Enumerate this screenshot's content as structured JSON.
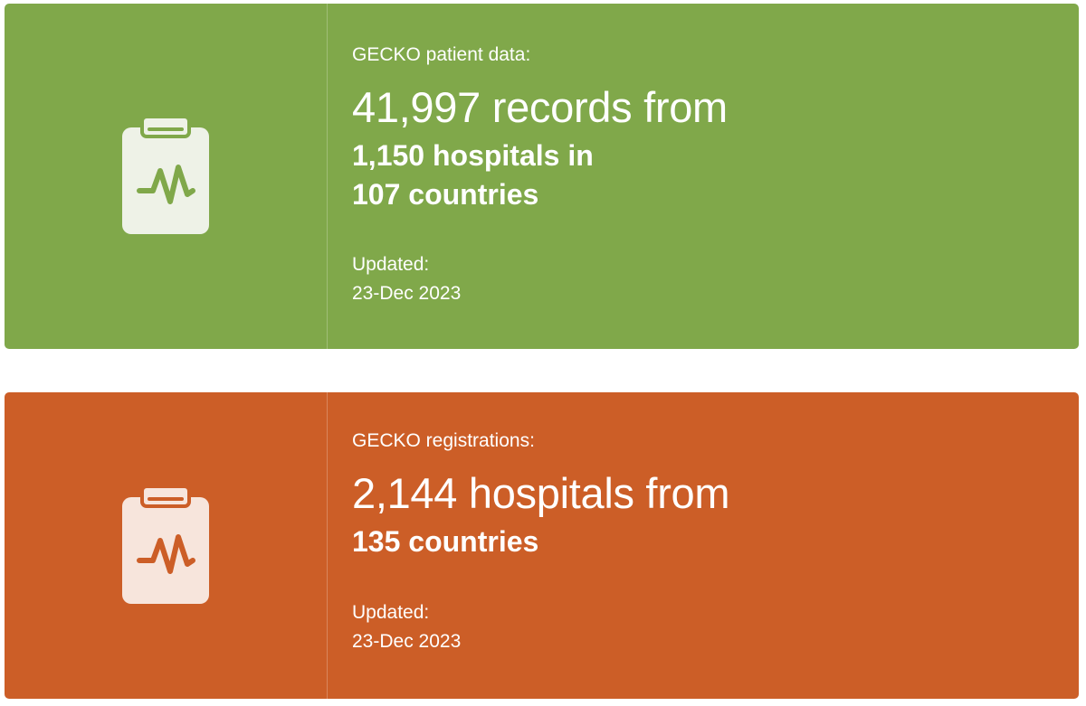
{
  "cards": [
    {
      "accent": "#80a84a",
      "icon": "clipboard-pulse-icon",
      "label": "GECKO patient data:",
      "headline": "41,997 records from",
      "sub_lines": [
        "1,150 hospitals in",
        "107 countries"
      ],
      "updated_label": "Updated:",
      "updated_date": "23-Dec 2023"
    },
    {
      "accent": "#cc5e27",
      "icon": "clipboard-pulse-icon",
      "label": "GECKO registrations:",
      "headline": "2,144 hospitals from",
      "sub_lines": [
        "135 countries"
      ],
      "updated_label": "Updated:",
      "updated_date": "23-Dec 2023"
    }
  ]
}
